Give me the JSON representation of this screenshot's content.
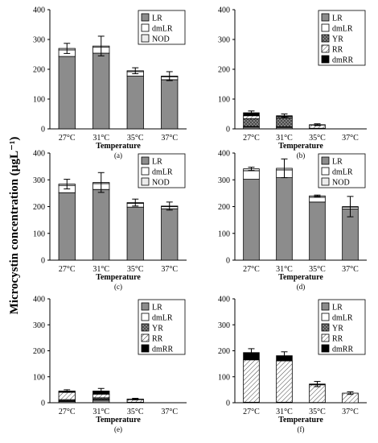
{
  "figure": {
    "ylabel": "Microcystin concentration (µgL⁻¹)"
  },
  "legend_colors": {
    "LR": "#8c8c8c",
    "dmLR": "#ffffff",
    "NOD": "#ececec",
    "YR": "#8c8c8c",
    "RR": "#ffffff",
    "dmRR": "#000000"
  },
  "chart_data": [
    {
      "type": "bar",
      "stacked": true,
      "panel_label": "(a)",
      "xlabel": "Temperature",
      "categories": [
        "27°C",
        "31°C",
        "35°C",
        "37°C"
      ],
      "ylim": [
        0,
        400
      ],
      "yticks": [
        0,
        100,
        200,
        300,
        400
      ],
      "grid": false,
      "legend_position": "top-right",
      "series": [
        {
          "name": "LR",
          "values": [
            243,
            254,
            177,
            165
          ]
        },
        {
          "name": "dmLR",
          "values": [
            22,
            20,
            15,
            10
          ]
        },
        {
          "name": "NOD",
          "values": [
            5,
            4,
            3,
            2
          ]
        }
      ],
      "error": [
        17,
        33,
        10,
        15
      ]
    },
    {
      "type": "bar",
      "stacked": true,
      "panel_label": "(b)",
      "xlabel": "Temperature",
      "categories": [
        "27°C",
        "31°C",
        "35°C",
        "37°C"
      ],
      "ylim": [
        0,
        400
      ],
      "yticks": [
        0,
        100,
        200,
        300,
        400
      ],
      "grid": false,
      "legend_position": "top-right",
      "series": [
        {
          "name": "LR",
          "values": [
            6,
            5,
            0,
            0
          ]
        },
        {
          "name": "dmLR",
          "values": [
            2,
            2,
            0,
            0
          ]
        },
        {
          "name": "YR",
          "values": [
            26,
            30,
            2,
            0
          ]
        },
        {
          "name": "RR",
          "values": [
            10,
            4,
            11,
            0
          ]
        },
        {
          "name": "dmRR",
          "values": [
            10,
            3,
            1,
            0
          ]
        }
      ],
      "error": [
        6,
        6,
        3,
        0
      ]
    },
    {
      "type": "bar",
      "stacked": true,
      "panel_label": "(c)",
      "xlabel": "Temperature",
      "categories": [
        "27°C",
        "31°C",
        "35°C",
        "37°C"
      ],
      "ylim": [
        0,
        400
      ],
      "yticks": [
        0,
        100,
        200,
        300,
        400
      ],
      "grid": false,
      "legend_position": "top-right",
      "series": [
        {
          "name": "LR",
          "values": [
            252,
            264,
            198,
            192
          ]
        },
        {
          "name": "dmLR",
          "values": [
            27,
            22,
            14,
            8
          ]
        },
        {
          "name": "NOD",
          "values": [
            5,
            4,
            3,
            2
          ]
        }
      ],
      "error": [
        18,
        37,
        13,
        15
      ]
    },
    {
      "type": "bar",
      "stacked": true,
      "panel_label": "(d)",
      "xlabel": "Temperature",
      "categories": [
        "27°C",
        "31°C",
        "35°C",
        "37°C"
      ],
      "ylim": [
        0,
        400
      ],
      "yticks": [
        0,
        100,
        200,
        300,
        400
      ],
      "grid": false,
      "legend_position": "top-right",
      "series": [
        {
          "name": "LR",
          "values": [
            302,
            308,
            217,
            191
          ]
        },
        {
          "name": "dmLR",
          "values": [
            32,
            29,
            18,
            7
          ]
        },
        {
          "name": "NOD",
          "values": [
            7,
            6,
            5,
            2
          ]
        }
      ],
      "error": [
        6,
        35,
        3,
        38
      ]
    },
    {
      "type": "bar",
      "stacked": true,
      "panel_label": "(e)",
      "xlabel": "Temperature",
      "categories": [
        "27°C",
        "31°C",
        "35°C",
        "37°C"
      ],
      "ylim": [
        0,
        400
      ],
      "yticks": [
        0,
        100,
        200,
        300,
        400
      ],
      "grid": false,
      "legend_position": "top-right",
      "series": [
        {
          "name": "LR",
          "values": [
            5,
            10,
            0,
            0
          ]
        },
        {
          "name": "dmLR",
          "values": [
            3,
            3,
            0,
            0
          ]
        },
        {
          "name": "YR",
          "values": [
            4,
            6,
            2,
            0
          ]
        },
        {
          "name": "RR",
          "values": [
            28,
            14,
            10,
            0
          ]
        },
        {
          "name": "dmRR",
          "values": [
            5,
            12,
            2,
            0
          ]
        }
      ],
      "error": [
        5,
        10,
        3,
        0
      ]
    },
    {
      "type": "bar",
      "stacked": true,
      "panel_label": "(f)",
      "xlabel": "Temperature",
      "categories": [
        "27°C",
        "31°C",
        "35°C",
        "37°C"
      ],
      "ylim": [
        0,
        400
      ],
      "yticks": [
        0,
        100,
        200,
        300,
        400
      ],
      "grid": false,
      "legend_position": "top-right",
      "series": [
        {
          "name": "LR",
          "values": [
            0,
            0,
            0,
            0
          ]
        },
        {
          "name": "dmLR",
          "values": [
            0,
            0,
            0,
            0
          ]
        },
        {
          "name": "YR",
          "values": [
            2,
            2,
            1,
            0
          ]
        },
        {
          "name": "RR",
          "values": [
            163,
            159,
            68,
            37
          ]
        },
        {
          "name": "dmRR",
          "values": [
            28,
            20,
            3,
            0
          ]
        }
      ],
      "error": [
        15,
        15,
        10,
        5
      ]
    }
  ]
}
